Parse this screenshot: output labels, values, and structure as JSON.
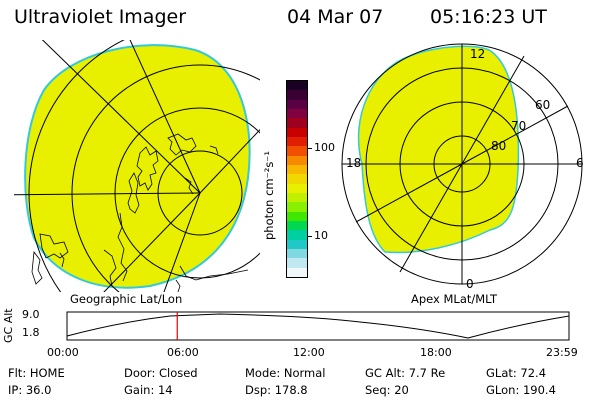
{
  "header": {
    "instrument": "Ultraviolet Imager",
    "date": "04 Mar 07",
    "time": "05:16:23 UT"
  },
  "left_panel": {
    "caption": "Geographic Lat/Lon",
    "fill_color": "#e8f000",
    "edge_color": "#33c9d9"
  },
  "right_panel": {
    "caption": "Apex  MLat/MLT",
    "fill_color": "#e8f000",
    "mlt_labels": {
      "top": "12",
      "left": "18",
      "right": "6",
      "bottom": "0"
    },
    "mlat_labels": [
      "60",
      "70",
      "80"
    ]
  },
  "colorbar": {
    "unit_label": "photon cm⁻²s⁻¹",
    "ticks": [
      "100",
      "10"
    ],
    "colors": [
      "#1a0022",
      "#3a0033",
      "#5a0044",
      "#800040",
      "#a00020",
      "#c80000",
      "#e02000",
      "#f05000",
      "#f88a00",
      "#f8b800",
      "#f0d800",
      "#e8f000",
      "#c0f000",
      "#88f000",
      "#40e800",
      "#00d850",
      "#00d0a0",
      "#20c8c8",
      "#80d8e0",
      "#c0e8f0",
      "#f0f8fc"
    ]
  },
  "altitude_plot": {
    "ylabel": "GC Alt",
    "y_ticks": [
      "9.0",
      "1.8"
    ],
    "x_ticks": [
      "00:00",
      "06:00",
      "12:00",
      "18:00",
      "23:59"
    ],
    "current_time_hours": 5.27,
    "marker_color": "#e00000"
  },
  "status": {
    "row1": [
      {
        "label": "Flt:",
        "value": "HOME"
      },
      {
        "label": "Door:",
        "value": "Closed"
      },
      {
        "label": "Mode:",
        "value": "Normal"
      },
      {
        "label": "GC Alt:",
        "value": "7.7 Re"
      },
      {
        "label": "GLat:",
        "value": "72.4"
      }
    ],
    "row2": [
      {
        "label": "IP:",
        "value": "36.0"
      },
      {
        "label": "Gain:",
        "value": "14"
      },
      {
        "label": "Dsp:",
        "value": "178.8"
      },
      {
        "label": "Seq:",
        "value": "20"
      },
      {
        "label": "GLon:",
        "value": "190.4"
      }
    ]
  }
}
